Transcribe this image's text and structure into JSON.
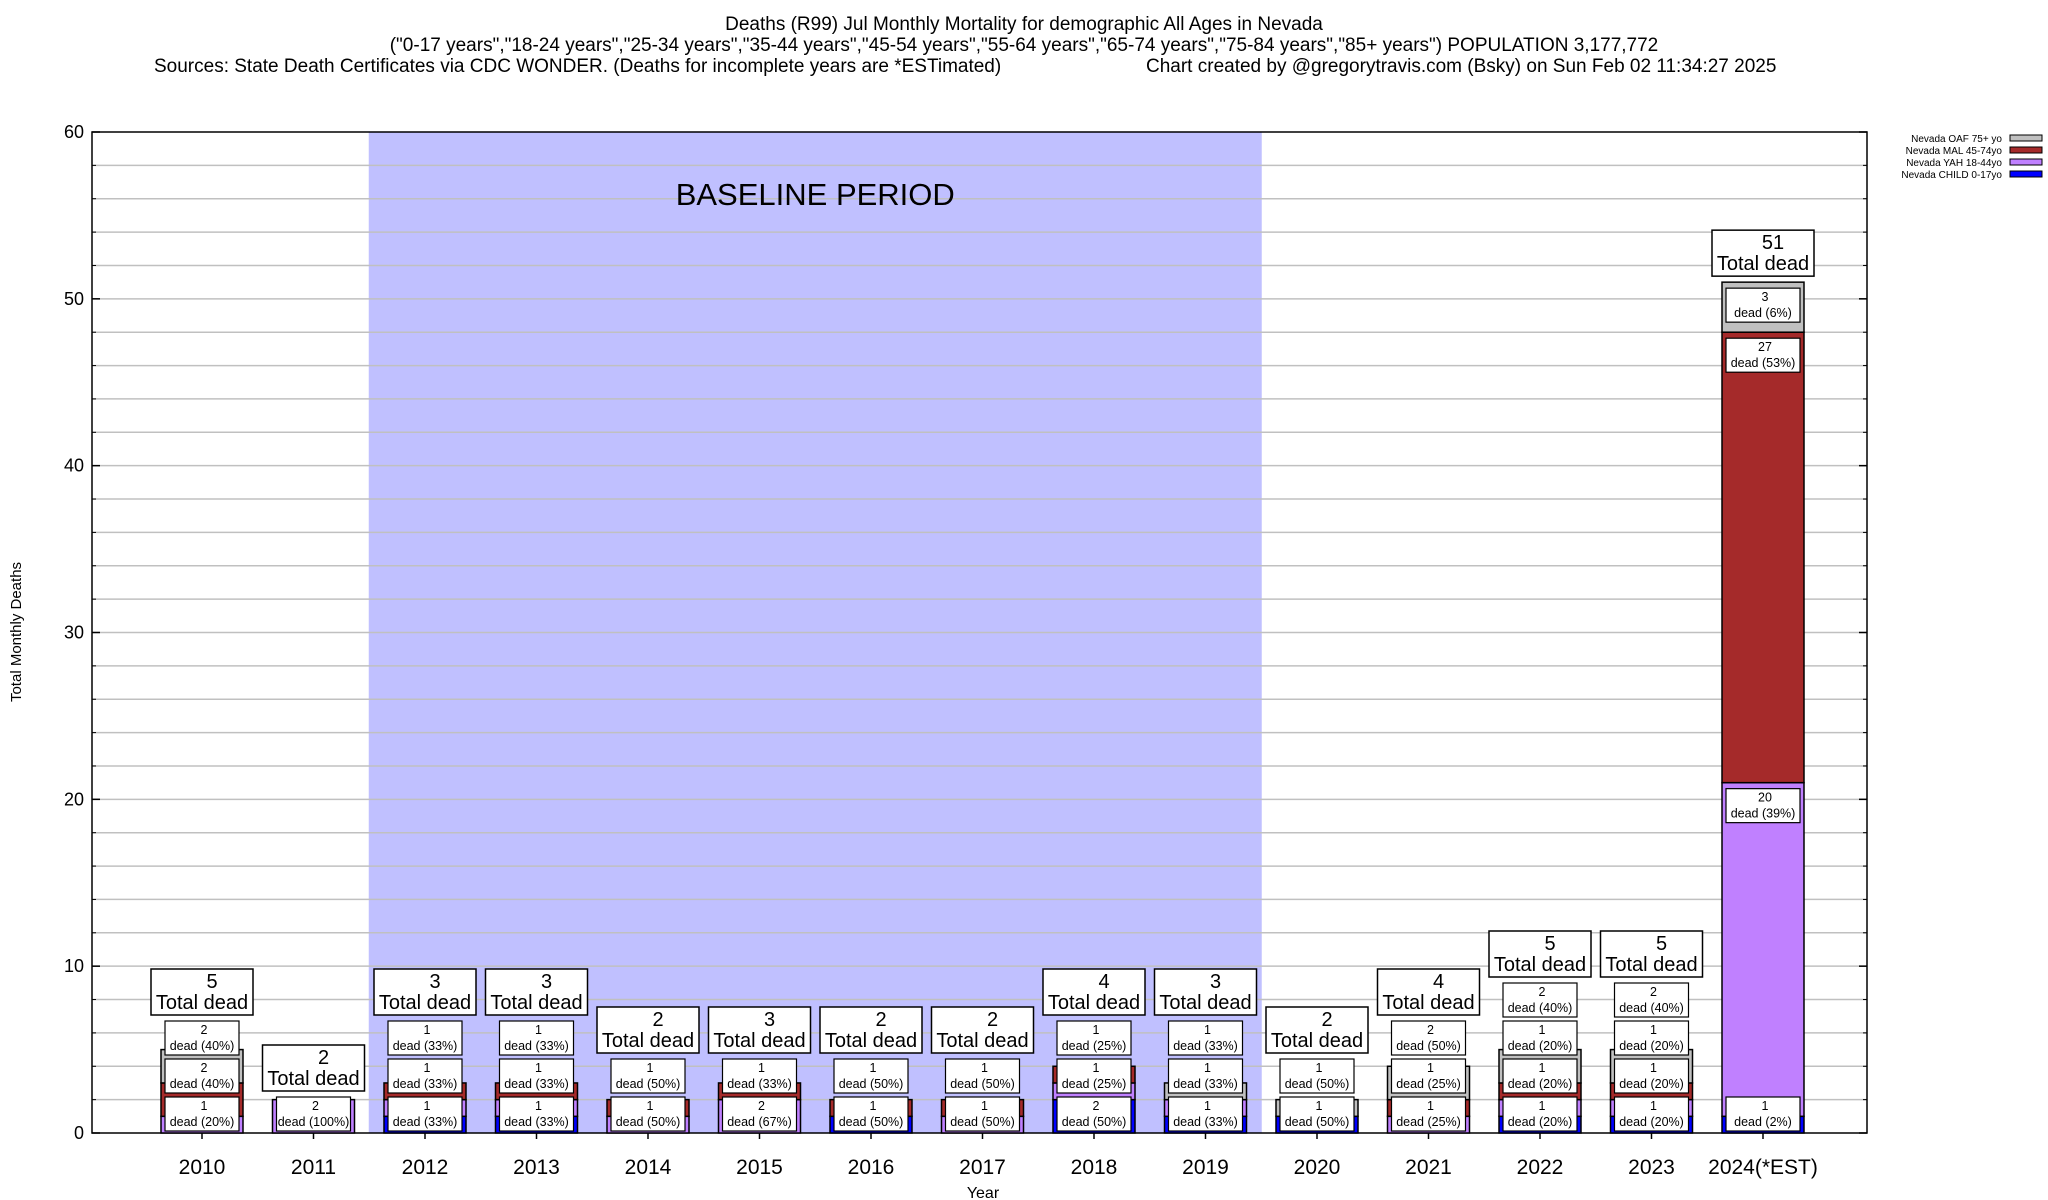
{
  "chart_data": {
    "type": "bar",
    "stacked": true,
    "title_lines": [
      "Deaths (R99) Jul Monthly Mortality for demographic All Ages in Nevada",
      "(\"0-17 years\",\"18-24 years\",\"25-34 years\",\"35-44 years\",\"45-54 years\",\"55-64 years\",\"65-74 years\",\"75-84 years\",\"85+ years\") POPULATION 3,177,772"
    ],
    "sources": "Sources: State Death Certificates via CDC WONDER. (Deaths for incomplete years are *ESTimated)",
    "credit": "Chart created by @gregorytravis.com (Bsky) on Sun Feb 02 11:34:27 2025",
    "xlabel": "Year",
    "ylabel": "Total Monthly Deaths",
    "ylim": [
      0,
      60
    ],
    "yticks": [
      0,
      10,
      20,
      30,
      40,
      50,
      60
    ],
    "grid": true,
    "legend_position": "top-right",
    "annotation": {
      "text": "BASELINE PERIOD",
      "from": "2012",
      "to": "2019",
      "color": "#c0c0ff"
    },
    "total_suffix": "Total dead",
    "segment_word": "dead",
    "categories": [
      "2010",
      "2011",
      "2012",
      "2013",
      "2014",
      "2015",
      "2016",
      "2017",
      "2018",
      "2019",
      "2020",
      "2021",
      "2022",
      "2023",
      "2024(*EST)"
    ],
    "series": [
      {
        "name": "Nevada CHILD 0-17yo",
        "color": "#0000ff",
        "values": [
          0,
          0,
          1,
          1,
          0,
          0,
          1,
          0,
          2,
          1,
          1,
          0,
          1,
          1,
          1
        ]
      },
      {
        "name": "Nevada YAH 18-44yo",
        "color": "#c080ff",
        "values": [
          1,
          2,
          1,
          1,
          1,
          2,
          0,
          1,
          1,
          1,
          0,
          1,
          1,
          1,
          20
        ]
      },
      {
        "name": "Nevada MAL 45-74yo",
        "color": "#a52a2a",
        "values": [
          2,
          0,
          1,
          1,
          1,
          1,
          1,
          1,
          1,
          0,
          0,
          1,
          1,
          1,
          27
        ]
      },
      {
        "name": "Nevada OAF 75+ yo",
        "color": "#c0c0c0",
        "values": [
          2,
          0,
          0,
          0,
          0,
          0,
          0,
          0,
          0,
          1,
          1,
          2,
          2,
          2,
          3
        ]
      }
    ],
    "totals": [
      5,
      2,
      3,
      3,
      2,
      3,
      2,
      2,
      4,
      3,
      2,
      4,
      5,
      5,
      51
    ]
  }
}
